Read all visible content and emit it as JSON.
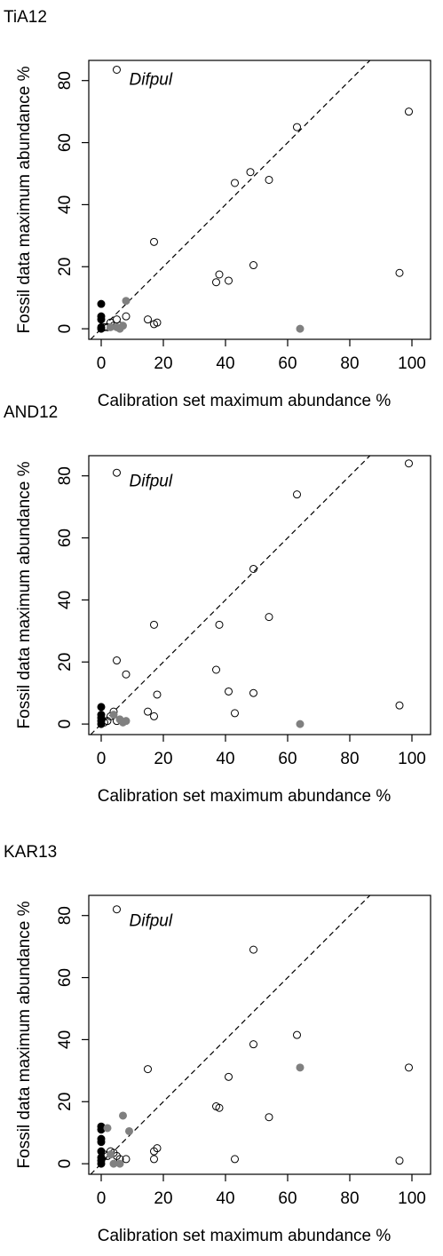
{
  "chart_data": [
    {
      "type": "scatter",
      "title": "TiA12",
      "xlabel": "Calibration set maximum abundance %",
      "ylabel": "Fossil data maximum abundance %",
      "xlim": [
        -4,
        106
      ],
      "ylim": [
        -3.4,
        86.5
      ],
      "xticks": [
        0,
        20,
        40,
        60,
        80,
        100
      ],
      "yticks": [
        0,
        20,
        40,
        60,
        80
      ],
      "identity_line": true,
      "annotations": [
        {
          "text": "Difpul",
          "x": 9,
          "y": 80
        }
      ],
      "series": [
        {
          "color": "#000000",
          "filled": false,
          "x": [
            5,
            99,
            63,
            48,
            43,
            54,
            17,
            38,
            37,
            41,
            49,
            96,
            15,
            17,
            18,
            8,
            5,
            3,
            4,
            6,
            2,
            1
          ],
          "values": [
            83.5,
            70,
            65,
            50.5,
            47,
            48,
            28,
            17.5,
            15,
            15.5,
            20.5,
            18,
            3,
            1.5,
            2,
            4,
            3,
            2,
            1,
            1,
            0.5,
            0.5
          ]
        },
        {
          "color": "#000000",
          "filled": true,
          "x": [
            0,
            0,
            0,
            0,
            0
          ],
          "values": [
            8,
            4,
            3,
            0.5,
            0
          ]
        },
        {
          "color": "#808080",
          "filled": true,
          "x": [
            8,
            64,
            7,
            5,
            3,
            6
          ],
          "values": [
            9,
            0,
            1,
            0.5,
            0.5,
            0
          ]
        }
      ]
    },
    {
      "type": "scatter",
      "title": "AND12",
      "xlabel": "Calibration set maximum abundance %",
      "ylabel": "Fossil data maximum abundance %",
      "xlim": [
        -4,
        106
      ],
      "ylim": [
        -3.4,
        86.5
      ],
      "xticks": [
        0,
        20,
        40,
        60,
        80,
        100
      ],
      "yticks": [
        0,
        20,
        40,
        60,
        80
      ],
      "identity_line": true,
      "annotations": [
        {
          "text": "Difpul",
          "x": 9,
          "y": 78
        }
      ],
      "series": [
        {
          "color": "#000000",
          "filled": false,
          "x": [
            5,
            99,
            63,
            49,
            17,
            38,
            54,
            5,
            8,
            37,
            41,
            49,
            18,
            15,
            17,
            43,
            96,
            4,
            3,
            5,
            2,
            1
          ],
          "values": [
            81,
            84,
            74,
            50,
            32,
            32,
            34.5,
            20.5,
            16,
            17.5,
            10.5,
            10,
            9.5,
            4,
            2.5,
            3.5,
            6,
            4,
            2.5,
            1,
            1,
            0.5
          ]
        },
        {
          "color": "#000000",
          "filled": true,
          "x": [
            0,
            0,
            0,
            0,
            0
          ],
          "values": [
            5.5,
            3,
            2,
            1,
            0
          ]
        },
        {
          "color": "#808080",
          "filled": true,
          "x": [
            64,
            6,
            8,
            4,
            7
          ],
          "values": [
            0,
            1.5,
            1,
            3,
            0.5
          ]
        }
      ]
    },
    {
      "type": "scatter",
      "title": "KAR13",
      "xlabel": "Calibration set maximum abundance %",
      "ylabel": "Fossil data maximum abundance %",
      "xlim": [
        -4,
        106
      ],
      "ylim": [
        -3.4,
        86.5
      ],
      "xticks": [
        0,
        20,
        40,
        60,
        80,
        100
      ],
      "yticks": [
        0,
        20,
        40,
        60,
        80
      ],
      "identity_line": true,
      "annotations": [
        {
          "text": "Difpul",
          "x": 9,
          "y": 78
        }
      ],
      "series": [
        {
          "color": "#000000",
          "filled": false,
          "x": [
            5,
            49,
            63,
            49,
            15,
            99,
            41,
            37,
            38,
            54,
            18,
            17,
            17,
            8,
            43,
            96,
            5,
            4,
            3,
            1,
            2,
            6
          ],
          "values": [
            82,
            69,
            41.5,
            38.5,
            30.5,
            31,
            28,
            18.5,
            18,
            15,
            5,
            4,
            1.5,
            1.5,
            1.5,
            1,
            2.5,
            3.5,
            4,
            3,
            2.5,
            1.5
          ]
        },
        {
          "color": "#000000",
          "filled": true,
          "x": [
            0,
            0,
            0,
            0,
            0,
            0,
            0,
            0
          ],
          "values": [
            12,
            11,
            8,
            7,
            4,
            2,
            1,
            0
          ]
        },
        {
          "color": "#808080",
          "filled": true,
          "x": [
            64,
            7,
            9,
            2,
            4,
            6,
            3
          ],
          "values": [
            31,
            15.5,
            10.5,
            11.5,
            0,
            0,
            3
          ]
        }
      ]
    }
  ]
}
